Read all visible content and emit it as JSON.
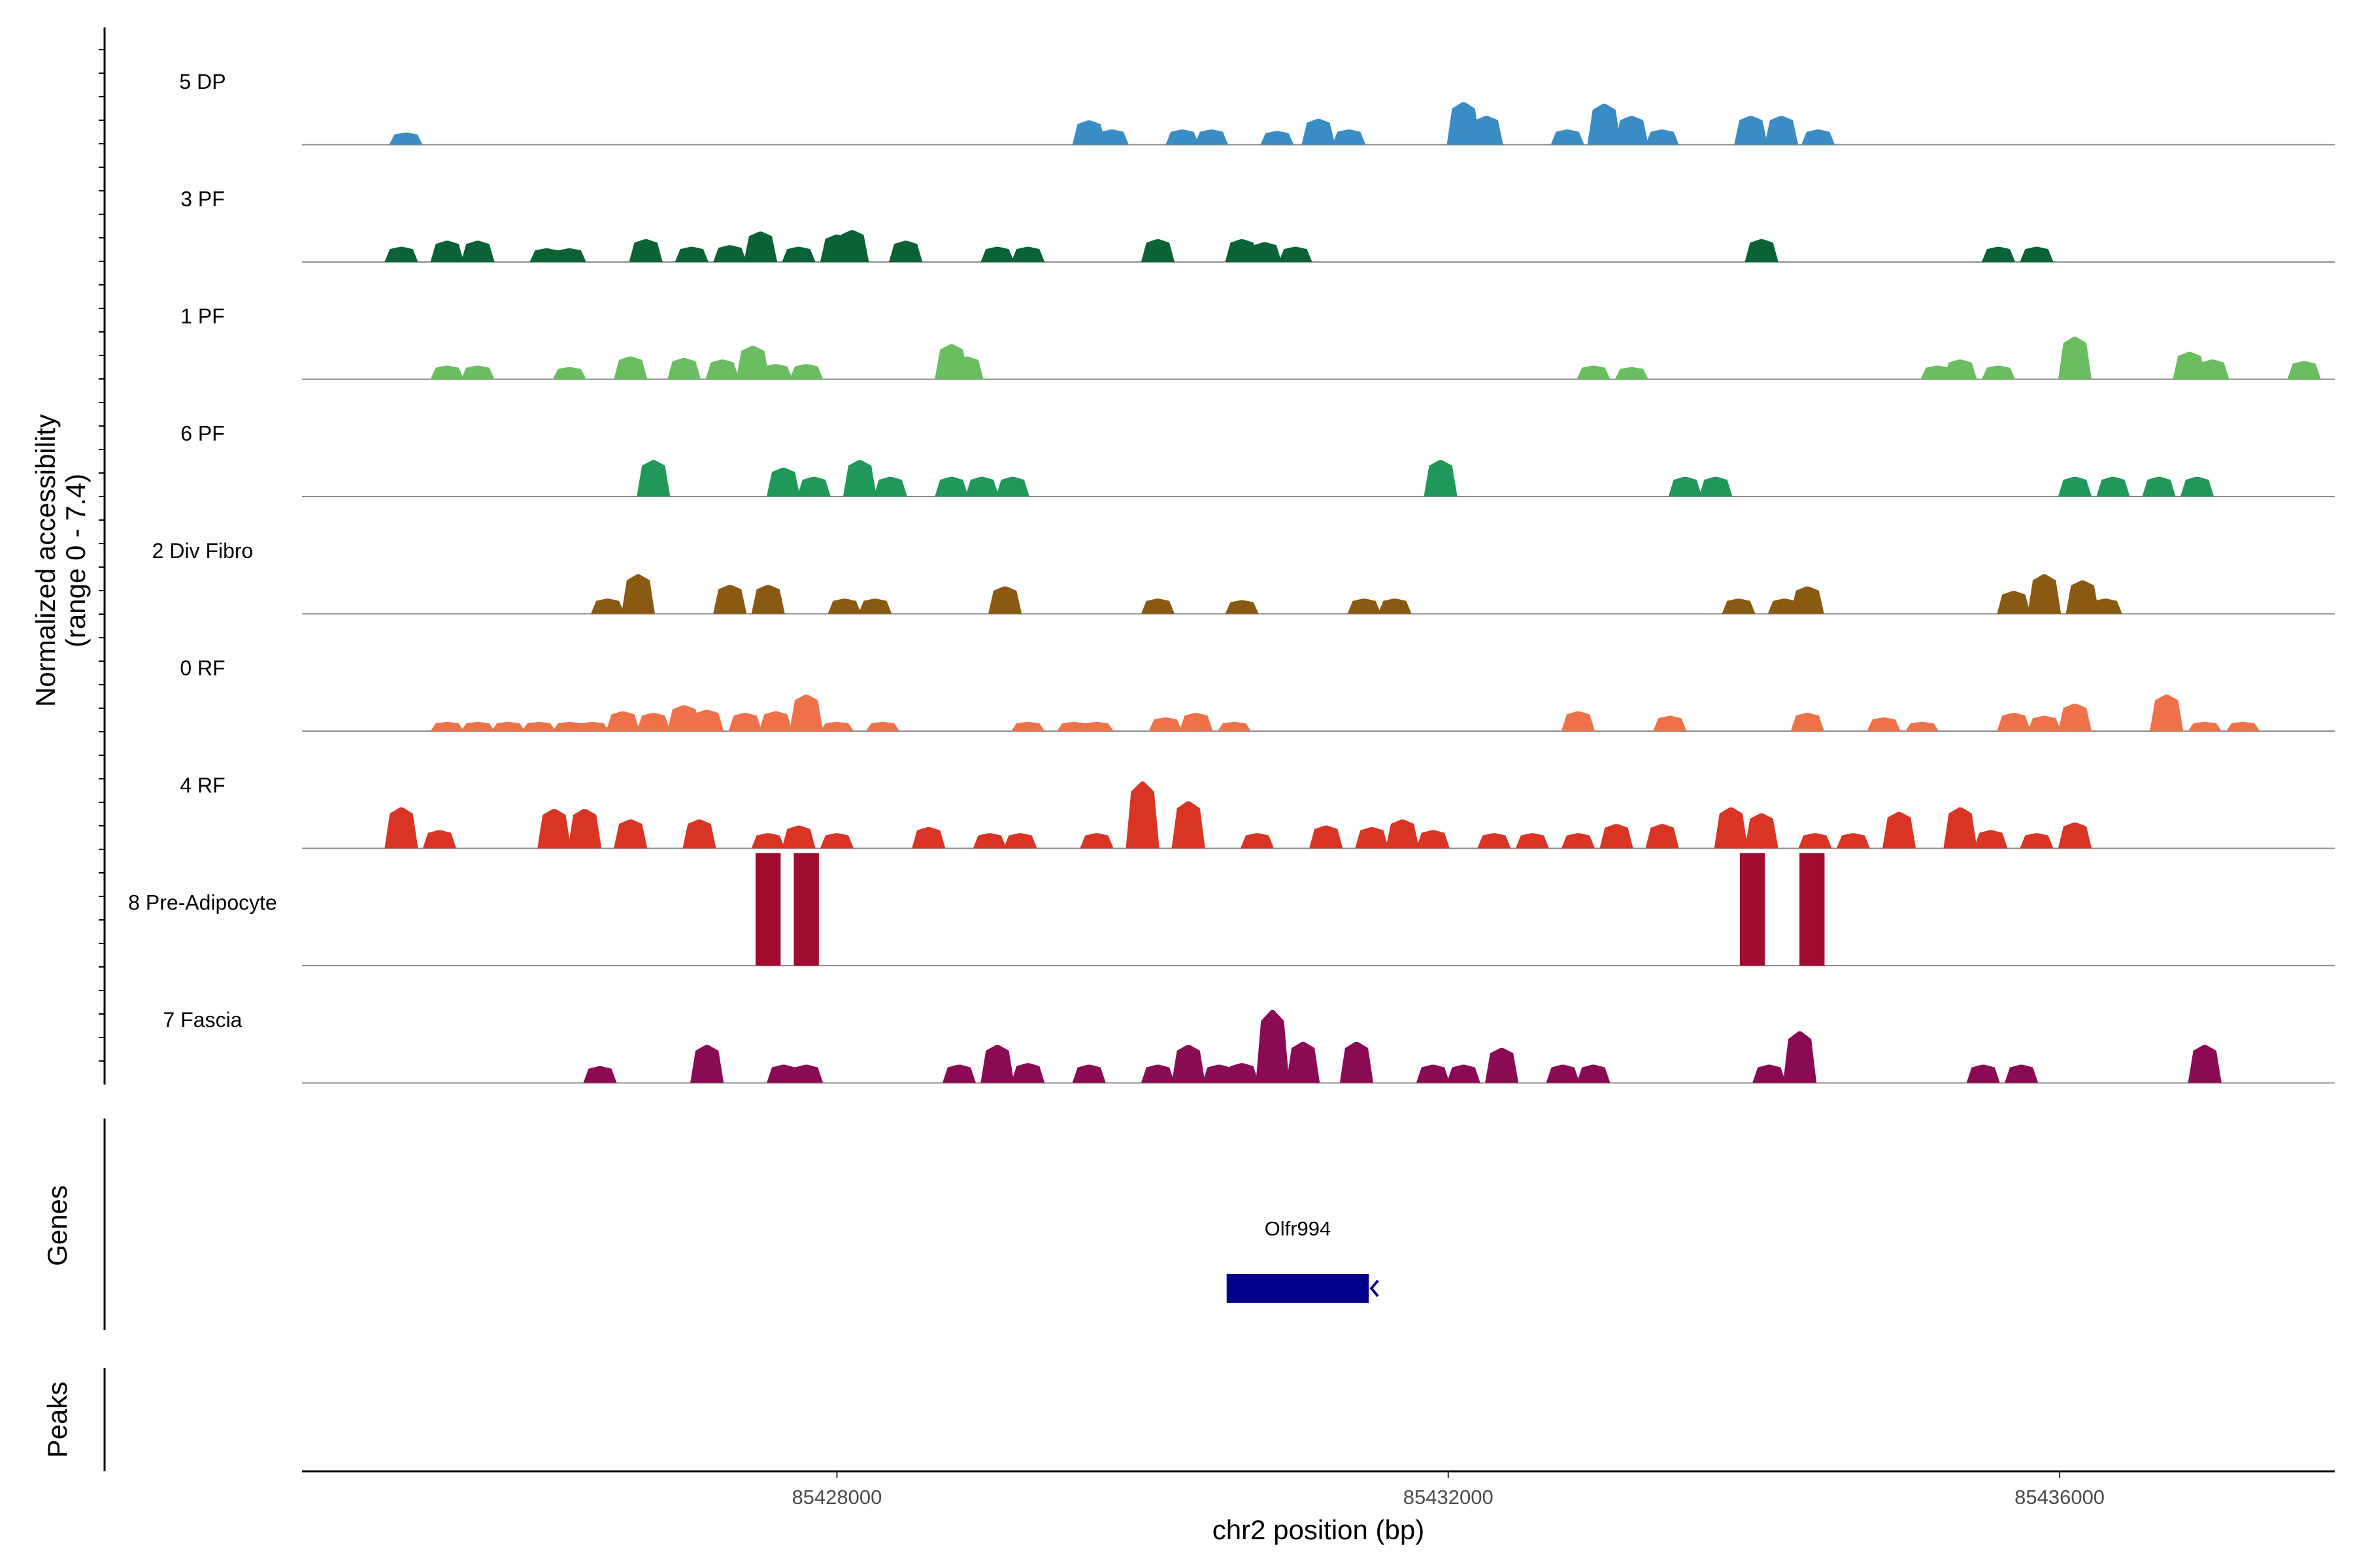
{
  "chart_data": {
    "type": "area",
    "title": "",
    "ylabel": "Normalized accessibility",
    "ylabel_range": "(range 0 - 7.4)",
    "xlabel": "chr2 position (bp)",
    "xlim": [
      85424500,
      85437800
    ],
    "ylim": [
      0,
      7.4
    ],
    "xticks": [
      85428000,
      85432000,
      85436000
    ],
    "xtick_labels": [
      "85428000",
      "85432000",
      "85436000"
    ],
    "tracks": [
      {
        "name": "5 DP",
        "color": "#3A8CC4",
        "peaks": [
          [
            85425180,
            0.8
          ],
          [
            85426700,
            0
          ],
          [
            85429650,
            1.6
          ],
          [
            85429800,
            1.0
          ],
          [
            85430260,
            1.0
          ],
          [
            85430450,
            1.0
          ],
          [
            85430880,
            0.9
          ],
          [
            85431150,
            1.7
          ],
          [
            85431350,
            1.0
          ],
          [
            85432100,
            2.8
          ],
          [
            85432250,
            1.9
          ],
          [
            85432780,
            1.0
          ],
          [
            85433020,
            2.7
          ],
          [
            85433200,
            1.9
          ],
          [
            85433400,
            1.0
          ],
          [
            85433980,
            1.9
          ],
          [
            85434180,
            1.9
          ],
          [
            85434420,
            1.0
          ]
        ]
      },
      {
        "name": "3 PF",
        "color": "#0B6234",
        "peaks": [
          [
            85425150,
            1.0
          ],
          [
            85425450,
            1.4
          ],
          [
            85425650,
            1.4
          ],
          [
            85426100,
            0.9
          ],
          [
            85426250,
            0.9
          ],
          [
            85426750,
            1.5
          ],
          [
            85427050,
            1.0
          ],
          [
            85427300,
            1.1
          ],
          [
            85427500,
            2.0
          ],
          [
            85427750,
            1.0
          ],
          [
            85428000,
            1.8
          ],
          [
            85428100,
            2.1
          ],
          [
            85428450,
            1.4
          ],
          [
            85429050,
            1.0
          ],
          [
            85429250,
            1.0
          ],
          [
            85430100,
            1.5
          ],
          [
            85430650,
            1.5
          ],
          [
            85430800,
            1.3
          ],
          [
            85431000,
            1.0
          ],
          [
            85434050,
            1.5
          ],
          [
            85435600,
            1.0
          ],
          [
            85435850,
            1.0
          ]
        ]
      },
      {
        "name": "1 PF",
        "color": "#6ABD61",
        "peaks": [
          [
            85425450,
            0.9
          ],
          [
            85425650,
            0.9
          ],
          [
            85426250,
            0.8
          ],
          [
            85426650,
            1.5
          ],
          [
            85427000,
            1.4
          ],
          [
            85427250,
            1.3
          ],
          [
            85427450,
            2.2
          ],
          [
            85427600,
            1.0
          ],
          [
            85427800,
            1.0
          ],
          [
            85428750,
            2.3
          ],
          [
            85428850,
            1.5
          ],
          [
            85432950,
            0.9
          ],
          [
            85433200,
            0.8
          ],
          [
            85435200,
            0.9
          ],
          [
            85435350,
            1.3
          ],
          [
            85435600,
            0.9
          ],
          [
            85436100,
            2.8
          ],
          [
            85436850,
            1.8
          ],
          [
            85437000,
            1.3
          ],
          [
            85437600,
            1.2
          ]
        ]
      },
      {
        "name": "6 PF",
        "color": "#20985A",
        "peaks": [
          [
            85426800,
            2.4
          ],
          [
            85427650,
            1.9
          ],
          [
            85427850,
            1.3
          ],
          [
            85428150,
            2.4
          ],
          [
            85428350,
            1.3
          ],
          [
            85428750,
            1.3
          ],
          [
            85428950,
            1.3
          ],
          [
            85429150,
            1.3
          ],
          [
            85431950,
            2.4
          ],
          [
            85433550,
            1.3
          ],
          [
            85433750,
            1.3
          ],
          [
            85436100,
            1.3
          ],
          [
            85436350,
            1.3
          ],
          [
            85436650,
            1.3
          ],
          [
            85436900,
            1.3
          ]
        ]
      },
      {
        "name": "2 Div Fibro",
        "color": "#8B5A12",
        "peaks": [
          [
            85426500,
            1.0
          ],
          [
            85426700,
            2.6
          ],
          [
            85427300,
            1.9
          ],
          [
            85427550,
            1.9
          ],
          [
            85428050,
            1.0
          ],
          [
            85428250,
            1.0
          ],
          [
            85429100,
            1.8
          ],
          [
            85430100,
            1.0
          ],
          [
            85430650,
            0.9
          ],
          [
            85431450,
            1.0
          ],
          [
            85431650,
            1.0
          ],
          [
            85433900,
            1.0
          ],
          [
            85434200,
            1.0
          ],
          [
            85434350,
            1.8
          ],
          [
            85435700,
            1.5
          ],
          [
            85435900,
            2.6
          ],
          [
            85436150,
            2.2
          ],
          [
            85436300,
            1.0
          ]
        ]
      },
      {
        "name": "0 RF",
        "color": "#EF7149",
        "peaks": [
          [
            85425450,
            0.6
          ],
          [
            85425650,
            0.6
          ],
          [
            85425850,
            0.6
          ],
          [
            85426050,
            0.6
          ],
          [
            85426250,
            0.6
          ],
          [
            85426400,
            0.6
          ],
          [
            85426600,
            1.3
          ],
          [
            85426800,
            1.2
          ],
          [
            85427000,
            1.7
          ],
          [
            85427150,
            1.4
          ],
          [
            85427400,
            1.2
          ],
          [
            85427600,
            1.3
          ],
          [
            85427800,
            2.4
          ],
          [
            85428000,
            0.6
          ],
          [
            85428300,
            0.6
          ],
          [
            85429250,
            0.6
          ],
          [
            85429550,
            0.6
          ],
          [
            85429700,
            0.6
          ],
          [
            85430150,
            0.9
          ],
          [
            85430350,
            1.2
          ],
          [
            85430600,
            0.6
          ],
          [
            85432850,
            1.3
          ],
          [
            85433450,
            1.0
          ],
          [
            85434350,
            1.2
          ],
          [
            85434850,
            0.9
          ],
          [
            85435100,
            0.6
          ],
          [
            85435700,
            1.2
          ],
          [
            85435900,
            1.0
          ],
          [
            85436100,
            1.8
          ],
          [
            85436700,
            2.4
          ],
          [
            85436950,
            0.6
          ],
          [
            85437200,
            0.6
          ]
        ]
      },
      {
        "name": "4 RF",
        "color": "#D93424",
        "peaks": [
          [
            85425150,
            2.7
          ],
          [
            85425400,
            1.2
          ],
          [
            85426150,
            2.6
          ],
          [
            85426350,
            2.6
          ],
          [
            85426650,
            1.9
          ],
          [
            85427100,
            1.9
          ],
          [
            85427550,
            1.0
          ],
          [
            85427750,
            1.5
          ],
          [
            85428000,
            1.0
          ],
          [
            85428600,
            1.4
          ],
          [
            85429000,
            1.0
          ],
          [
            85429200,
            1.0
          ],
          [
            85429700,
            1.0
          ],
          [
            85430000,
            4.4
          ],
          [
            85430300,
            3.1
          ],
          [
            85430750,
            1.0
          ],
          [
            85431200,
            1.5
          ],
          [
            85431500,
            1.4
          ],
          [
            85431700,
            1.9
          ],
          [
            85431900,
            1.2
          ],
          [
            85432300,
            1.0
          ],
          [
            85432550,
            1.0
          ],
          [
            85432850,
            1.0
          ],
          [
            85433100,
            1.6
          ],
          [
            85433400,
            1.6
          ],
          [
            85433850,
            2.7
          ],
          [
            85434050,
            2.3
          ],
          [
            85434400,
            1.0
          ],
          [
            85434650,
            1.0
          ],
          [
            85434950,
            2.4
          ],
          [
            85435350,
            2.7
          ],
          [
            85435550,
            1.2
          ],
          [
            85435850,
            1.0
          ],
          [
            85436100,
            1.7
          ]
        ]
      },
      {
        "name": "8 Pre-Adipocyte",
        "color": "#A10C2E",
        "peaks": [
          [
            85427550,
            7.4
          ],
          [
            85427800,
            7.4
          ],
          [
            85433990,
            7.4
          ],
          [
            85434380,
            7.4
          ]
        ]
      },
      {
        "name": "7 Fascia",
        "color": "#8A0A54",
        "peaks": [
          [
            85426450,
            1.1
          ],
          [
            85427150,
            2.5
          ],
          [
            85427650,
            1.2
          ],
          [
            85427800,
            1.2
          ],
          [
            85428800,
            1.2
          ],
          [
            85429050,
            2.5
          ],
          [
            85429250,
            1.3
          ],
          [
            85429650,
            1.2
          ],
          [
            85430100,
            1.2
          ],
          [
            85430300,
            2.5
          ],
          [
            85430500,
            1.2
          ],
          [
            85430650,
            1.3
          ],
          [
            85430850,
            4.8
          ],
          [
            85431050,
            2.7
          ],
          [
            85431400,
            2.7
          ],
          [
            85431900,
            1.2
          ],
          [
            85432100,
            1.2
          ],
          [
            85432350,
            2.3
          ],
          [
            85432750,
            1.2
          ],
          [
            85432950,
            1.2
          ],
          [
            85434100,
            1.2
          ],
          [
            85434300,
            3.4
          ],
          [
            85435500,
            1.2
          ],
          [
            85435750,
            1.2
          ],
          [
            85436950,
            2.5
          ]
        ]
      }
    ],
    "genes": [
      {
        "name": "Olfr994",
        "start": 85430550,
        "end": 85431480,
        "strand": "-"
      }
    ],
    "panels": [
      "Genes",
      "Peaks"
    ]
  }
}
